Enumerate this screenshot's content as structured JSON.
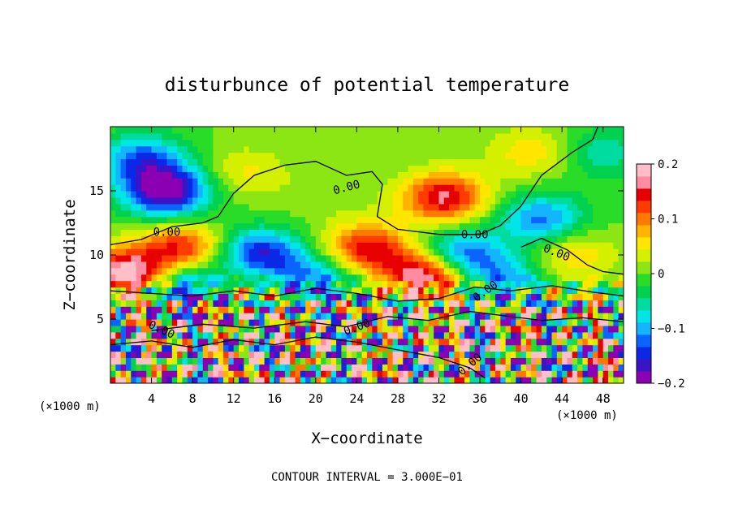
{
  "chart_data": {
    "type": "heatmap",
    "title": "disturbunce of potential temperature",
    "xlabel": "X−coordinate",
    "ylabel": "Z−coordinate",
    "x_unit": "(×1000 m)",
    "y_unit": "(×1000 m)",
    "xlim": [
      0,
      50
    ],
    "ylim": [
      0,
      20
    ],
    "x_ticks": [
      4,
      8,
      12,
      16,
      20,
      24,
      28,
      32,
      36,
      40,
      44,
      48
    ],
    "y_ticks": [
      5,
      10,
      15
    ],
    "colorbar": {
      "range": [
        -0.2,
        0.2
      ],
      "tick_values": [
        0.2,
        0.1,
        0,
        -0.1,
        -0.2
      ],
      "tick_labels": [
        "0.2",
        "0.1",
        "0",
        "−0.1",
        "−0.2"
      ],
      "colors": [
        "#8c00b4",
        "#3c14c8",
        "#0a28e6",
        "#0a64ff",
        "#14b4ff",
        "#00e6e6",
        "#00dca0",
        "#00d250",
        "#28dc28",
        "#8ce614",
        "#d2f000",
        "#ffe600",
        "#ffb400",
        "#ff7800",
        "#ff3c00",
        "#e60000",
        "#ff8ca0",
        "#ffbec8"
      ]
    },
    "contour_interval_text": "CONTOUR INTERVAL = 3.000E−01",
    "contour_labels": [
      "0.00",
      "0.00",
      "0.00",
      "0.00",
      "0.00",
      "0.00",
      "0.00",
      "0.00"
    ],
    "blobs": [
      {
        "x": 5.5,
        "z": 15.0,
        "v": -0.2
      },
      {
        "x": 3.0,
        "z": 17.5,
        "v": -0.12
      },
      {
        "x": 13.0,
        "z": 16.5,
        "v": 0.05
      },
      {
        "x": 14.5,
        "z": 10.0,
        "v": -0.17
      },
      {
        "x": 7.0,
        "z": 10.5,
        "v": 0.14
      },
      {
        "x": 1.5,
        "z": 8.5,
        "v": 0.2
      },
      {
        "x": 25.0,
        "z": 10.5,
        "v": 0.15
      },
      {
        "x": 21.0,
        "z": 15.0,
        "v": 0.02
      },
      {
        "x": 32.5,
        "z": 14.5,
        "v": 0.16
      },
      {
        "x": 34.0,
        "z": 10.0,
        "v": -0.15
      },
      {
        "x": 31.0,
        "z": 8.5,
        "v": 0.2
      },
      {
        "x": 42.0,
        "z": 12.8,
        "v": -0.12
      },
      {
        "x": 41.0,
        "z": 18.0,
        "v": 0.06
      },
      {
        "x": 48.0,
        "z": 18.0,
        "v": -0.06
      },
      {
        "x": 45.0,
        "z": 10.0,
        "v": 0.07
      },
      {
        "x": 7.5,
        "z": 7.5,
        "v": -0.15
      },
      {
        "x": 13.0,
        "z": 8.0,
        "v": 0.06
      },
      {
        "x": 20.0,
        "z": 8.0,
        "v": -0.12
      },
      {
        "x": 38.5,
        "z": 8.0,
        "v": -0.1
      }
    ]
  }
}
